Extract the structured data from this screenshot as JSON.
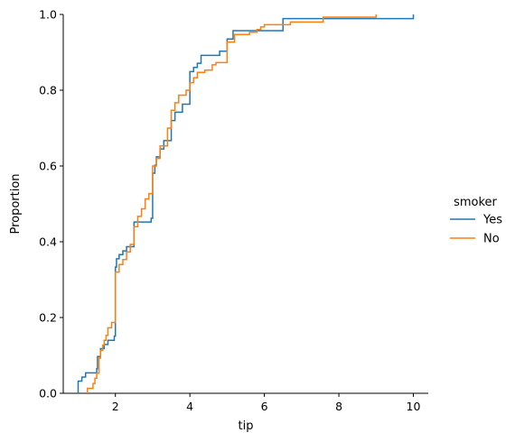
{
  "chart_data": {
    "type": "line",
    "subtype": "ecdf-step",
    "title": "",
    "xlabel": "tip",
    "ylabel": "Proportion",
    "xlim": [
      0.6,
      10.4
    ],
    "ylim": [
      0.0,
      1.0
    ],
    "xticks": [
      2,
      4,
      6,
      8,
      10
    ],
    "yticks": [
      0.0,
      0.2,
      0.4,
      0.6,
      0.8,
      1.0
    ],
    "xtick_labels": [
      "2",
      "4",
      "6",
      "8",
      "10"
    ],
    "ytick_labels": [
      "0.0",
      "0.2",
      "0.4",
      "0.6",
      "0.8",
      "1.0"
    ],
    "grid": false,
    "legend": {
      "title": "smoker",
      "placement": "right",
      "entries": [
        "Yes",
        "No"
      ]
    },
    "series": [
      {
        "name": "Yes",
        "color": "#1f77b4",
        "points": [
          [
            1.0,
            0.032
          ],
          [
            1.1,
            0.043
          ],
          [
            1.2,
            0.054
          ],
          [
            1.5,
            0.065
          ],
          [
            1.52,
            0.097
          ],
          [
            1.6,
            0.118
          ],
          [
            1.7,
            0.129
          ],
          [
            1.8,
            0.14
          ],
          [
            1.97,
            0.151
          ],
          [
            2.0,
            0.333
          ],
          [
            2.03,
            0.355
          ],
          [
            2.1,
            0.366
          ],
          [
            2.2,
            0.376
          ],
          [
            2.3,
            0.387
          ],
          [
            2.5,
            0.452
          ],
          [
            2.96,
            0.462
          ],
          [
            3.0,
            0.581
          ],
          [
            3.06,
            0.602
          ],
          [
            3.1,
            0.624
          ],
          [
            3.2,
            0.645
          ],
          [
            3.3,
            0.667
          ],
          [
            3.5,
            0.72
          ],
          [
            3.6,
            0.742
          ],
          [
            3.8,
            0.763
          ],
          [
            4.0,
            0.849
          ],
          [
            4.1,
            0.86
          ],
          [
            4.2,
            0.871
          ],
          [
            4.3,
            0.892
          ],
          [
            4.8,
            0.903
          ],
          [
            5.0,
            0.935
          ],
          [
            5.16,
            0.957
          ],
          [
            6.5,
            0.989
          ],
          [
            10.0,
            1.0
          ]
        ]
      },
      {
        "name": "No",
        "color": "#ff7f0e",
        "points": [
          [
            1.25,
            0.013
          ],
          [
            1.4,
            0.026
          ],
          [
            1.45,
            0.04
          ],
          [
            1.5,
            0.053
          ],
          [
            1.56,
            0.093
          ],
          [
            1.6,
            0.113
          ],
          [
            1.66,
            0.127
          ],
          [
            1.7,
            0.14
          ],
          [
            1.75,
            0.153
          ],
          [
            1.8,
            0.173
          ],
          [
            1.9,
            0.187
          ],
          [
            2.0,
            0.32
          ],
          [
            2.1,
            0.34
          ],
          [
            2.2,
            0.353
          ],
          [
            2.3,
            0.373
          ],
          [
            2.4,
            0.393
          ],
          [
            2.5,
            0.44
          ],
          [
            2.6,
            0.467
          ],
          [
            2.7,
            0.487
          ],
          [
            2.8,
            0.513
          ],
          [
            2.9,
            0.527
          ],
          [
            3.0,
            0.6
          ],
          [
            3.1,
            0.62
          ],
          [
            3.2,
            0.653
          ],
          [
            3.4,
            0.7
          ],
          [
            3.5,
            0.747
          ],
          [
            3.6,
            0.767
          ],
          [
            3.7,
            0.787
          ],
          [
            3.9,
            0.8
          ],
          [
            4.0,
            0.82
          ],
          [
            4.1,
            0.833
          ],
          [
            4.2,
            0.847
          ],
          [
            4.4,
            0.853
          ],
          [
            4.6,
            0.867
          ],
          [
            4.7,
            0.873
          ],
          [
            5.0,
            0.927
          ],
          [
            5.2,
            0.947
          ],
          [
            5.6,
            0.953
          ],
          [
            5.8,
            0.96
          ],
          [
            5.9,
            0.967
          ],
          [
            6.0,
            0.973
          ],
          [
            6.7,
            0.98
          ],
          [
            7.58,
            0.993
          ],
          [
            9.0,
            1.0
          ]
        ]
      }
    ]
  }
}
